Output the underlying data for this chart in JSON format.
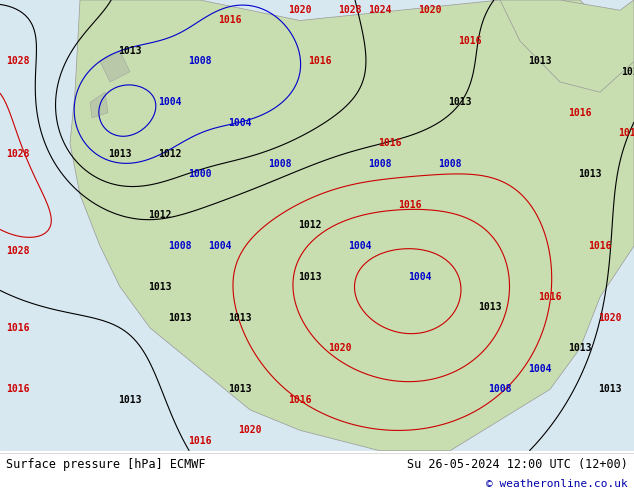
{
  "title_left": "Surface pressure [hPa] ECMWF",
  "title_right": "Su 26-05-2024 12:00 UTC (12+00)",
  "copyright": "© weatheronline.co.uk",
  "bg_color": "#ffffff",
  "map_bg": "#f0f0f0",
  "land_color": "#c8e6c9",
  "ocean_color": "#e8e8e8",
  "isobar_color_red": "#cc0000",
  "isobar_color_blue": "#0000cc",
  "isobar_color_black": "#000000",
  "label_color_red": "#cc0000",
  "label_color_blue": "#0000cc",
  "label_color_black": "#000000",
  "font_size_labels": 7,
  "font_size_bottom": 8.5,
  "font_size_copyright": 8
}
